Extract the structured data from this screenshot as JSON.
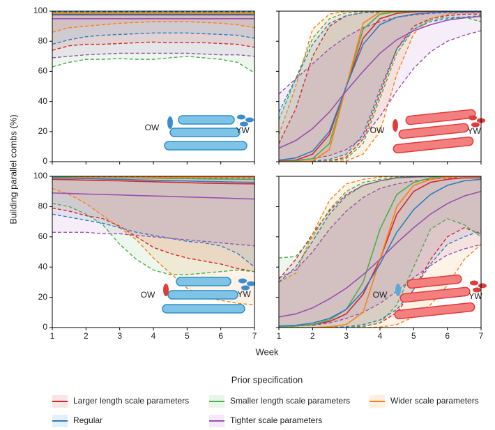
{
  "y_label": "Building parallel combs (%)",
  "x_label": "Week",
  "legend": {
    "title": "Prior specification",
    "entries": [
      {
        "name": "Larger length scale parameters",
        "color": "#d62728"
      },
      {
        "name": "Smaller length scale parameters",
        "color": "#4cae4c"
      },
      {
        "name": "Wider scale parameters",
        "color": "#ff7f0e"
      },
      {
        "name": "Regular",
        "color": "#2f7bbf"
      },
      {
        "name": "Tighter scale parameters",
        "color": "#9a4fb0"
      }
    ]
  },
  "chart_data": [
    {
      "type": "band-line",
      "annotations": [
        "OW",
        "YW"
      ],
      "x": [
        1,
        1.5,
        2,
        2.5,
        3,
        3.5,
        4,
        4.5,
        5,
        5.5,
        6,
        6.5,
        7
      ],
      "xlim": [
        1,
        7
      ],
      "ylim": [
        0,
        100
      ],
      "xticks": [
        1,
        2,
        3,
        4,
        5,
        6,
        7
      ],
      "yticks": [
        0,
        20,
        40,
        60,
        80,
        100
      ],
      "series": [
        {
          "values": [
            98,
            98,
            98,
            98,
            98,
            98,
            98,
            98,
            98,
            98,
            98,
            98,
            98
          ],
          "lower": [
            74,
            77,
            78,
            78,
            78.5,
            79,
            79.5,
            79,
            79,
            79,
            78.5,
            78,
            76
          ],
          "upper": [
            99.5,
            99.5,
            99.5,
            99.5,
            99.5,
            99.5,
            99.5,
            99.5,
            99.5,
            99.5,
            99.5,
            99.5,
            99.5
          ]
        },
        {
          "values": [
            99,
            99,
            99,
            99,
            99,
            99,
            99,
            99,
            99,
            99,
            99,
            99,
            99
          ],
          "lower": [
            63,
            66,
            68,
            68,
            68.5,
            68,
            68,
            69,
            70,
            69,
            68,
            66,
            59
          ],
          "upper": [
            99.8,
            99.8,
            99.8,
            99.8,
            99.8,
            99.8,
            99.8,
            99.8,
            99.8,
            99.8,
            99.8,
            99.8,
            99.8
          ]
        },
        {
          "values": [
            98.5,
            98.5,
            98.5,
            98.5,
            98.5,
            98.5,
            98.5,
            98.5,
            98.5,
            98.5,
            98.5,
            98.5,
            98.5
          ],
          "lower": [
            86,
            89,
            90,
            91,
            92,
            92.5,
            93,
            93,
            93,
            92.5,
            92,
            91,
            89
          ],
          "upper": [
            99.5,
            99.5,
            99.5,
            99.5,
            99.5,
            99.5,
            99.5,
            99.5,
            99.5,
            99.5,
            99.5,
            99.5,
            99.5
          ]
        },
        {
          "values": [
            97.5,
            97.5,
            97.5,
            97.5,
            97.5,
            97.5,
            97.5,
            97.5,
            97.5,
            97.5,
            97.5,
            97.5,
            97.5
          ],
          "lower": [
            78,
            81,
            83,
            84,
            84.5,
            85,
            85.5,
            85.5,
            85.5,
            85,
            84.5,
            84,
            82
          ],
          "upper": [
            99.5,
            99.5,
            99.5,
            99.5,
            99.5,
            99.5,
            99.5,
            99.5,
            99.5,
            99.5,
            99.5,
            99.5,
            99.5
          ]
        },
        {
          "values": [
            95,
            95,
            95,
            95,
            95,
            95,
            95,
            95,
            95,
            95,
            95,
            95,
            95
          ],
          "lower": [
            69,
            70,
            71,
            71.5,
            72,
            72,
            72,
            72,
            72,
            71.5,
            71,
            71,
            70
          ],
          "upper": [
            98,
            98,
            98,
            98,
            98,
            98,
            98,
            98,
            98,
            98,
            98,
            98,
            98
          ]
        }
      ]
    },
    {
      "type": "band-line",
      "annotations": [
        "OW",
        "YW"
      ],
      "x": [
        1,
        1.5,
        2,
        2.5,
        3,
        3.5,
        4,
        4.5,
        5,
        5.5,
        6,
        6.5,
        7
      ],
      "xlim": [
        1,
        7
      ],
      "ylim": [
        0,
        100
      ],
      "xticks": [
        1,
        2,
        3,
        4,
        5,
        6,
        7
      ],
      "yticks": [
        0,
        20,
        40,
        60,
        80,
        100
      ],
      "series": [
        {
          "values": [
            0.3,
            1,
            5,
            18,
            50,
            82,
            95,
            98.5,
            99.5,
            99.8,
            100,
            100,
            100
          ],
          "lower": [
            0,
            0,
            0.1,
            0.5,
            3,
            15,
            45,
            75,
            90,
            95,
            97,
            98,
            98
          ],
          "upper": [
            12,
            35,
            70,
            90,
            97,
            99,
            99.5,
            99.7,
            99.8,
            99.9,
            100,
            100,
            100
          ]
        },
        {
          "values": [
            0.1,
            0.5,
            2,
            12,
            50,
            88,
            98,
            99.5,
            100,
            100,
            100,
            100,
            100
          ],
          "lower": [
            0,
            0,
            0,
            0.3,
            2,
            12,
            42,
            72,
            88,
            94,
            96,
            96,
            93
          ],
          "upper": [
            28,
            55,
            82,
            95,
            99,
            99.8,
            100,
            100,
            100,
            100,
            100,
            100,
            100
          ]
        },
        {
          "values": [
            0,
            0,
            0.5,
            8,
            50,
            92,
            99.5,
            100,
            100,
            100,
            100,
            100,
            100
          ],
          "lower": [
            0,
            0,
            0,
            0,
            0.5,
            5,
            20,
            58,
            85,
            95,
            98,
            99,
            99
          ],
          "upper": [
            18,
            50,
            88,
            98,
            100,
            100,
            100,
            100,
            100,
            100,
            100,
            100,
            100
          ]
        },
        {
          "values": [
            1,
            2.5,
            7,
            20,
            50,
            78,
            91,
            96,
            98,
            99,
            99.5,
            99.7,
            99.8
          ],
          "lower": [
            0,
            0,
            0.3,
            1.5,
            5,
            18,
            48,
            75,
            88,
            93,
            95,
            96,
            97
          ],
          "upper": [
            33,
            55,
            78,
            92,
            97,
            99,
            99.5,
            99.7,
            99.8,
            99.9,
            100,
            100,
            100
          ]
        },
        {
          "values": [
            9,
            14,
            22,
            33,
            47,
            60,
            72,
            81,
            87,
            91,
            94,
            95.5,
            96.5
          ],
          "lower": [
            0.5,
            1,
            2,
            4,
            8,
            16,
            30,
            47,
            62,
            73,
            80,
            84,
            87
          ],
          "upper": [
            45,
            55,
            65,
            75,
            83,
            89,
            93,
            96,
            97.5,
            98.5,
            99,
            99,
            99
          ]
        }
      ]
    },
    {
      "type": "band-line",
      "annotations": [
        "OW",
        "YW"
      ],
      "x": [
        1,
        1.5,
        2,
        2.5,
        3,
        3.5,
        4,
        4.5,
        5,
        5.5,
        6,
        6.5,
        7
      ],
      "xlim": [
        1,
        7
      ],
      "ylim": [
        0,
        100
      ],
      "xticks": [
        1,
        2,
        3,
        4,
        5,
        6,
        7
      ],
      "yticks": [
        0,
        20,
        40,
        60,
        80,
        100
      ],
      "series": [
        {
          "values": [
            98,
            97.8,
            97.5,
            97.2,
            97,
            96.7,
            96.4,
            96.1,
            95.8,
            95.5,
            95.3,
            95.1,
            95
          ],
          "lower": [
            79,
            77,
            74,
            72,
            67,
            60,
            53,
            49,
            46,
            44,
            42,
            39,
            37
          ],
          "upper": [
            99.8,
            99.8,
            99.8,
            99.8,
            99.8,
            99.8,
            99.8,
            99.8,
            99.8,
            99.8,
            99.8,
            99.8,
            99.8
          ]
        },
        {
          "values": [
            99.5,
            99.4,
            99.3,
            99.2,
            99,
            98.9,
            98.8,
            98.6,
            98.5,
            98.3,
            98.2,
            98.1,
            98
          ],
          "lower": [
            82,
            80,
            75,
            68,
            55,
            45,
            38,
            35,
            35,
            36,
            37,
            38,
            37
          ],
          "upper": [
            99.9,
            99.9,
            99.9,
            99.9,
            99.9,
            99.9,
            99.9,
            99.9,
            99.9,
            99.9,
            99.9,
            99.9,
            99.9
          ]
        },
        {
          "values": [
            99,
            99,
            99.1,
            99.1,
            99.2,
            99.2,
            99.3,
            99.3,
            99.4,
            99.4,
            99.5,
            99.5,
            99.5
          ],
          "lower": [
            92,
            88,
            82,
            74,
            66,
            58,
            46,
            36,
            26,
            20,
            18,
            16,
            15
          ],
          "upper": [
            100,
            100,
            100,
            100,
            100,
            100,
            100,
            100,
            100,
            100,
            100,
            100,
            100
          ]
        },
        {
          "values": [
            99,
            98.8,
            98.5,
            98.2,
            98,
            97.7,
            97.4,
            97.1,
            96.9,
            96.6,
            96.4,
            96.2,
            96
          ],
          "lower": [
            75,
            73,
            71,
            69,
            66,
            63,
            61,
            59,
            57,
            56,
            54,
            49,
            40
          ],
          "upper": [
            99.8,
            99.8,
            99.8,
            99.8,
            99.8,
            99.8,
            99.8,
            99.8,
            99.8,
            99.8,
            99.8,
            99.8,
            99.8
          ]
        },
        {
          "values": [
            89,
            88.7,
            88.3,
            88,
            87.7,
            87.3,
            87,
            86.7,
            86.3,
            86,
            85.7,
            85.3,
            85
          ],
          "lower": [
            63,
            63,
            63,
            62,
            62,
            61,
            60,
            59,
            58,
            57,
            56,
            55,
            54
          ],
          "upper": [
            99,
            99,
            99,
            99,
            99,
            99,
            99,
            99,
            99,
            99,
            99,
            99,
            99
          ]
        }
      ]
    },
    {
      "type": "band-line",
      "annotations": [
        "OW",
        "YW"
      ],
      "x": [
        1,
        1.5,
        2,
        2.5,
        3,
        3.5,
        4,
        4.5,
        5,
        5.5,
        6,
        6.5,
        7
      ],
      "xlim": [
        1,
        7
      ],
      "ylim": [
        0,
        100
      ],
      "xticks": [
        1,
        2,
        3,
        4,
        5,
        6,
        7
      ],
      "yticks": [
        0,
        20,
        40,
        60,
        80,
        100
      ],
      "series": [
        {
          "values": [
            0.5,
            1,
            2,
            4,
            9,
            22,
            45,
            75,
            90,
            96,
            98,
            99,
            99
          ],
          "lower": [
            0,
            0,
            0,
            0,
            0.2,
            0.8,
            3,
            10,
            25,
            45,
            60,
            66,
            62
          ],
          "upper": [
            32,
            45,
            62,
            77,
            88,
            94,
            97,
            99,
            99.5,
            99.8,
            100,
            100,
            100
          ]
        },
        {
          "values": [
            0.5,
            1,
            2,
            5,
            12,
            30,
            65,
            88,
            96,
            99,
            99.5,
            100,
            100
          ],
          "lower": [
            0,
            0,
            0,
            0,
            0.2,
            0.6,
            3,
            15,
            40,
            65,
            72,
            68,
            60
          ],
          "upper": [
            46,
            47,
            60,
            78,
            90,
            96,
            98,
            99.5,
            100,
            100,
            100,
            100,
            100
          ]
        },
        {
          "values": [
            0,
            0,
            0,
            0.5,
            2,
            10,
            45,
            80,
            94,
            98,
            99.5,
            100,
            100
          ],
          "lower": [
            0,
            0,
            0,
            0,
            0,
            0,
            0.3,
            2,
            7,
            15,
            28,
            45,
            55
          ],
          "upper": [
            30,
            36,
            62,
            84,
            95,
            98,
            99.5,
            100,
            100,
            100,
            100,
            100,
            100
          ]
        },
        {
          "values": [
            1,
            1.5,
            3,
            6,
            12,
            24,
            42,
            63,
            78,
            88,
            94,
            97,
            98
          ],
          "lower": [
            0,
            0,
            0,
            0.2,
            0.5,
            2,
            5,
            12,
            25,
            42,
            55,
            60,
            64
          ],
          "upper": [
            30,
            40,
            57,
            75,
            87,
            94,
            97,
            99,
            99.5,
            99.8,
            100,
            100,
            100
          ]
        },
        {
          "values": [
            7,
            9,
            13,
            19,
            26,
            35,
            45,
            56,
            66,
            75,
            82,
            87,
            90
          ],
          "lower": [
            0.5,
            1,
            1.5,
            3,
            6,
            10,
            16,
            24,
            33,
            41,
            48,
            52,
            55
          ],
          "upper": [
            33,
            38,
            50,
            65,
            77,
            86,
            92,
            95,
            97,
            98,
            99,
            99,
            99
          ]
        }
      ]
    }
  ]
}
